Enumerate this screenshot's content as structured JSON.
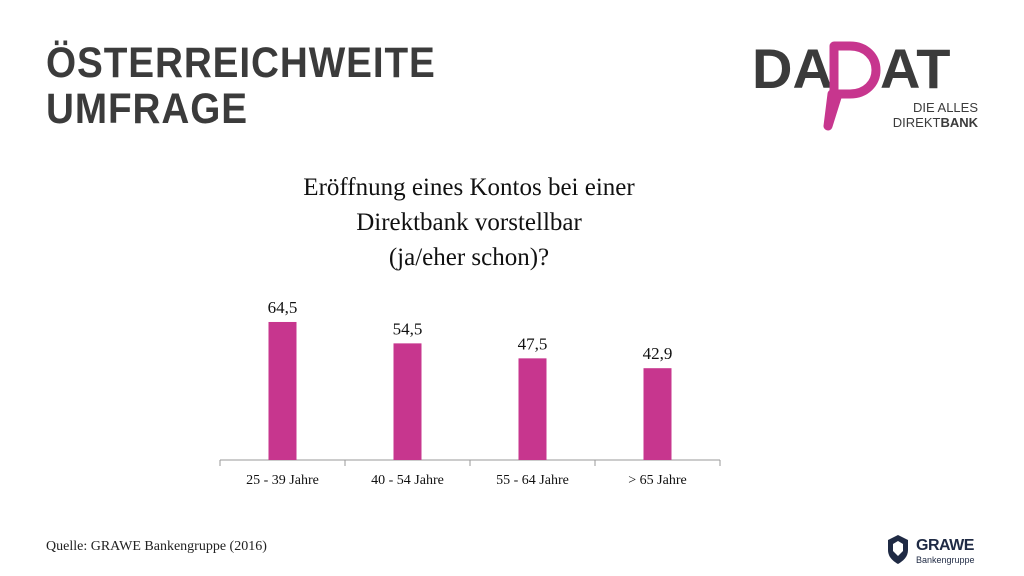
{
  "header": {
    "title_lines": [
      "ÖSTERREICHWEITE",
      "UMFRAGE"
    ]
  },
  "logo": {
    "brand_left": "DA",
    "brand_right": "AT",
    "tagline_1": "DIE ALLES",
    "tagline_2a": "DIREKT",
    "tagline_2b": "BANK",
    "icon": "speech-bubble-d-icon",
    "accent_color": "#c7368e",
    "text_color": "#3b3b3b"
  },
  "chart_data": {
    "type": "bar",
    "title_lines": [
      "Eröffnung eines Kontos bei einer",
      "Direktbank vorstellbar",
      "(ja/eher schon)?"
    ],
    "categories": [
      "25 - 39 Jahre",
      "40 - 54 Jahre",
      "55 - 64 Jahre",
      "> 65 Jahre"
    ],
    "values": [
      64.5,
      54.5,
      47.5,
      42.9
    ],
    "value_labels": [
      "64,5",
      "54,5",
      "47,5",
      "42,9"
    ],
    "ylim": [
      0,
      100
    ],
    "bar_color": "#c7368e",
    "grid": false,
    "legend": "none"
  },
  "footer": {
    "source": "Quelle: GRAWE Bankengruppe (2016)",
    "grawe_name": "GRAWE",
    "grawe_sub": "Bankengruppe",
    "grawe_icon": "shield-icon"
  }
}
